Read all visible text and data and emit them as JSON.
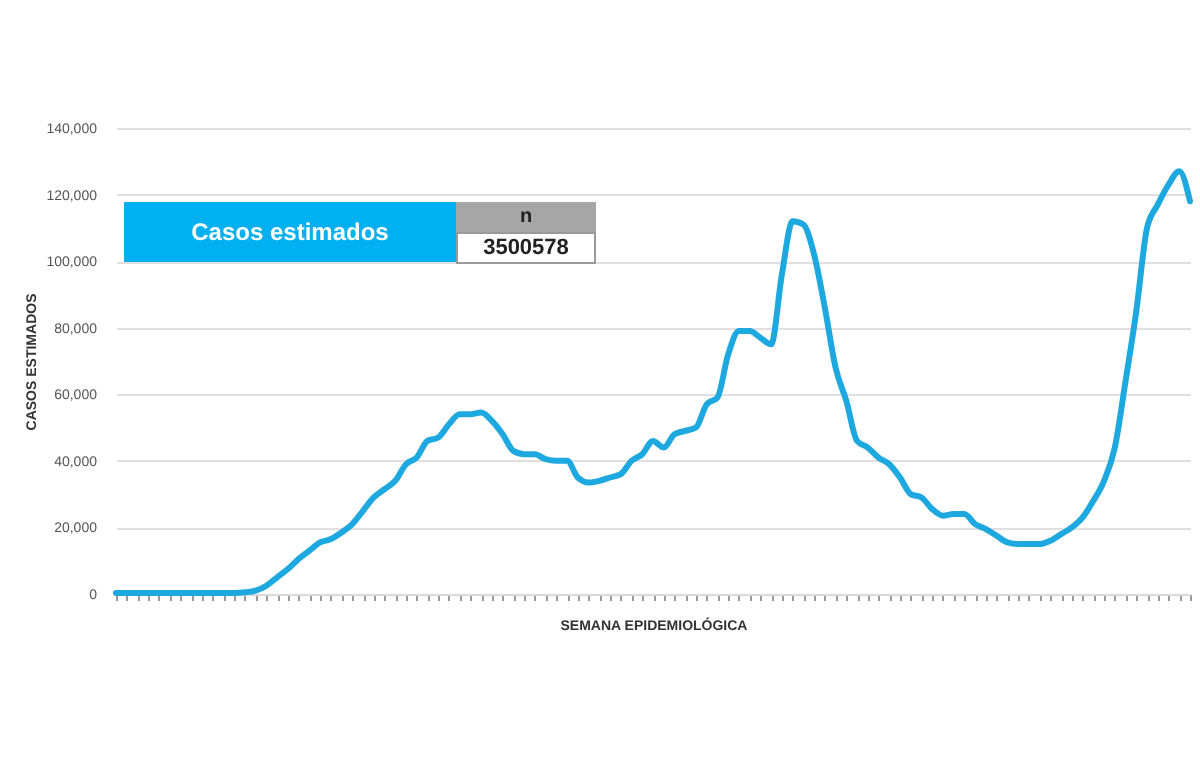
{
  "chart_data": {
    "type": "line",
    "xlabel": "SEMANA EPIDEMIOLÓGICA",
    "ylabel": "CASOS ESTIMADOS",
    "annotations": [
      "Casos estimados",
      "n",
      "3500578"
    ],
    "categories": [
      null,
      null,
      null,
      null,
      null,
      null,
      null,
      null,
      null,
      null,
      null,
      null,
      null,
      null,
      null,
      null,
      null,
      null,
      null,
      null,
      null,
      null,
      null,
      null,
      null,
      null,
      null,
      null,
      null,
      null,
      null,
      null,
      null,
      null,
      null,
      null,
      null,
      null,
      null,
      null,
      null,
      null,
      null,
      null,
      null,
      null,
      null,
      null,
      null,
      null,
      null,
      null,
      null,
      null,
      null,
      null,
      null,
      null,
      null,
      null,
      null,
      null,
      null,
      null,
      null,
      null,
      null,
      null,
      null,
      null,
      null,
      null,
      null,
      null,
      null,
      null,
      null,
      null,
      null,
      null,
      null,
      null,
      null,
      null,
      null,
      null,
      null,
      null,
      null,
      null,
      null,
      null,
      null,
      null,
      null,
      null,
      null,
      null,
      null,
      null,
      null
    ],
    "series": [
      {
        "color": "#1ea8e0",
        "values": [
          300,
          300,
          300,
          300,
          300,
          300,
          300,
          300,
          300,
          300,
          300,
          300,
          500,
          1000,
          2500,
          5000,
          7500,
          10500,
          13000,
          15500,
          16500,
          18500,
          21000,
          25000,
          29000,
          31500,
          34000,
          39000,
          41000,
          46000,
          47000,
          51000,
          54000,
          54000,
          54500,
          52000,
          48000,
          43000,
          42000,
          42000,
          40500,
          40000,
          40000,
          35000,
          33500,
          34000,
          35000,
          36000,
          40000,
          42000,
          46000,
          44000,
          48000,
          49000,
          50000,
          57000,
          59000,
          72000,
          79000,
          79000,
          77000,
          75000,
          96000,
          112000,
          111000,
          102000,
          86000,
          68000,
          58000,
          46000,
          44000,
          41000,
          39000,
          35000,
          30000,
          29000,
          25500,
          23500,
          24000,
          24000,
          21000,
          19500,
          17500,
          15500,
          15000,
          15000,
          15000,
          16000,
          18000,
          20000,
          23000,
          28000,
          34000,
          44000,
          64000,
          85000,
          110000,
          117000,
          123000,
          127000,
          118000
        ]
      }
    ],
    "ylim": [
      0,
      140000
    ],
    "yticks": [
      0,
      {
        "value": 20000,
        "label": "20,000"
      },
      {
        "value": 40000,
        "label": "40,000"
      },
      {
        "value": 60000,
        "label": "60,000"
      },
      {
        "value": 80000,
        "label": "80,000"
      },
      {
        "value": 100000,
        "label": "100,000"
      },
      {
        "value": 120000,
        "label": "120,000"
      },
      {
        "value": 140000,
        "label": "140,000"
      }
    ],
    "grid": "y",
    "legend": false,
    "line_style": "solid",
    "marker": "none"
  }
}
